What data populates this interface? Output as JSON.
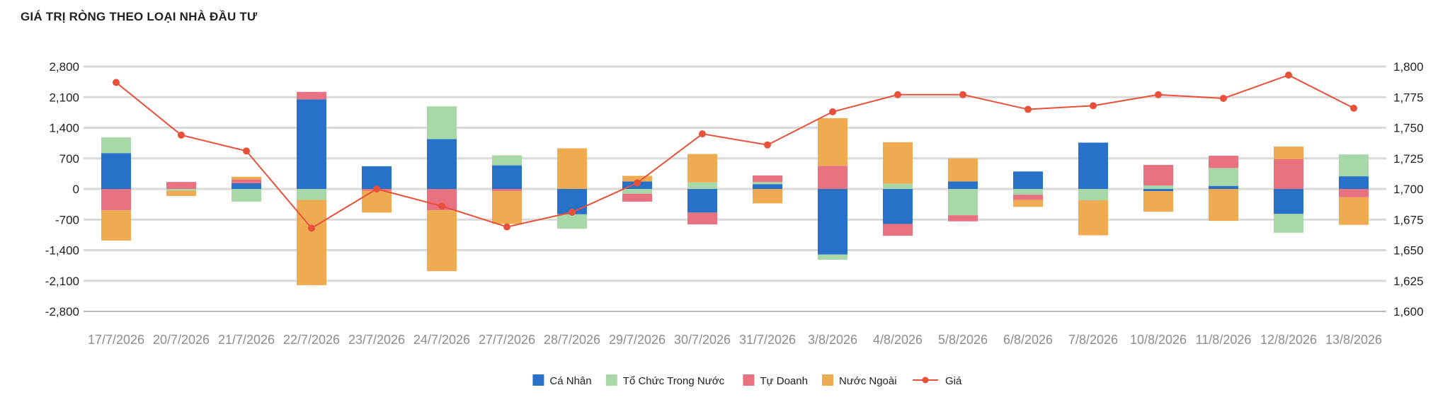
{
  "page": {
    "title": "GIÁ TRỊ RÒNG THEO LOẠI NHÀ ĐẦU TƯ"
  },
  "chart_data": {
    "type": "bar",
    "stacked": true,
    "title": "GIÁ TRỊ RÒNG THEO LOẠI NHÀ ĐẦU TƯ",
    "categories": [
      "17/7/2026",
      "20/7/2026",
      "21/7/2026",
      "22/7/2026",
      "23/7/2026",
      "24/7/2026",
      "27/7/2026",
      "28/7/2026",
      "29/7/2026",
      "30/7/2026",
      "31/7/2026",
      "3/8/2026",
      "4/8/2026",
      "5/8/2026",
      "6/8/2026",
      "7/8/2026",
      "10/8/2026",
      "11/8/2026",
      "12/8/2026",
      "13/8/2026"
    ],
    "series": [
      {
        "name": "Cá Nhân",
        "color": "#2771c9",
        "values": [
          820,
          0,
          130,
          2050,
          520,
          1140,
          540,
          -580,
          170,
          -540,
          110,
          -1500,
          -800,
          170,
          400,
          1060,
          -50,
          70,
          -570,
          290
        ]
      },
      {
        "name": "Tổ Chức Trong Nước",
        "color": "#a8d8a8",
        "values": [
          360,
          -40,
          -290,
          -250,
          0,
          750,
          230,
          -330,
          -110,
          150,
          50,
          -120,
          120,
          -600,
          -130,
          -260,
          80,
          410,
          -430,
          500
        ]
      },
      {
        "name": "Tự Doanh",
        "color": "#e8727f",
        "values": [
          -490,
          160,
          90,
          170,
          -40,
          -490,
          -50,
          0,
          -180,
          -270,
          150,
          530,
          -270,
          -140,
          -120,
          0,
          470,
          280,
          680,
          -190
        ]
      },
      {
        "name": "Nước Ngoài",
        "color": "#eeab52",
        "values": [
          -690,
          -120,
          60,
          -1950,
          -500,
          -1390,
          -750,
          930,
          130,
          650,
          -330,
          1090,
          950,
          530,
          -160,
          -800,
          -470,
          -730,
          290,
          -630
        ]
      }
    ],
    "line": {
      "name": "Giá",
      "color": "#e8503a",
      "values": [
        1787,
        1744,
        1731,
        1668,
        1700,
        1686,
        1669,
        1681,
        1705,
        1745,
        1736,
        1763,
        1777,
        1777,
        1765,
        1768,
        1777,
        1774,
        1793,
        1766
      ]
    },
    "y_left": {
      "min": -2800,
      "max": 2800,
      "ticks": [
        "2,800",
        "2,100",
        "1,400",
        "700",
        "0",
        "-700",
        "-1,400",
        "-2,100",
        "-2,800"
      ]
    },
    "y_right": {
      "min": 1600,
      "max": 1800,
      "ticks": [
        "1,800",
        "1,775",
        "1,750",
        "1,725",
        "1,700",
        "1,675",
        "1,650",
        "1,625",
        "1,600"
      ]
    },
    "legend": {
      "position": "bottom",
      "labels": [
        "Cá Nhân",
        "Tổ Chức Trong Nước",
        "Tự Doanh",
        "Nước Ngoài",
        "Giá"
      ]
    },
    "grid": true
  }
}
